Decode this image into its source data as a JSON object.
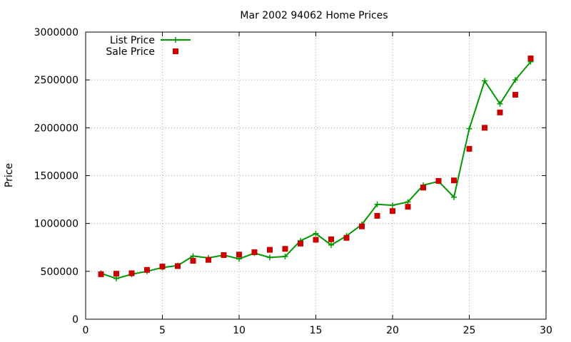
{
  "chart_data": {
    "type": "line",
    "title": "Mar 2002 94062 Home Prices",
    "xlabel": "",
    "ylabel": "Price",
    "xlim": [
      0,
      30
    ],
    "ylim": [
      0,
      3000000
    ],
    "xticks": [
      0,
      5,
      10,
      15,
      20,
      25,
      30
    ],
    "yticks": [
      0,
      500000,
      1000000,
      1500000,
      2000000,
      2500000,
      3000000
    ],
    "xtick_labels": [
      "0",
      "5",
      "10",
      "15",
      "20",
      "25",
      "30"
    ],
    "ytick_labels": [
      "0",
      "500000",
      "1000000",
      "1500000",
      "2000000",
      "2500000",
      "3000000"
    ],
    "grid": true,
    "legend_position": "top-left",
    "x": [
      1,
      2,
      3,
      4,
      5,
      6,
      7,
      8,
      9,
      10,
      11,
      12,
      13,
      14,
      15,
      16,
      17,
      18,
      19,
      20,
      21,
      22,
      23,
      24,
      25,
      26,
      27,
      28,
      29
    ],
    "series": [
      {
        "name": "List Price",
        "style": "line-plus",
        "color": "#009900",
        "values": [
          480000,
          425000,
          470000,
          500000,
          540000,
          560000,
          660000,
          640000,
          670000,
          630000,
          690000,
          645000,
          655000,
          820000,
          895000,
          775000,
          870000,
          990000,
          1200000,
          1190000,
          1225000,
          1400000,
          1440000,
          1275000,
          1990000,
          2490000,
          2250000,
          2500000,
          2690000
        ]
      },
      {
        "name": "Sale Price",
        "style": "square",
        "color": "#cc0000",
        "values": [
          470000,
          475000,
          480000,
          515000,
          550000,
          555000,
          610000,
          620000,
          670000,
          675000,
          700000,
          725000,
          735000,
          790000,
          830000,
          835000,
          850000,
          970000,
          1080000,
          1130000,
          1175000,
          1375000,
          1445000,
          1450000,
          1780000,
          2000000,
          2160000,
          2345000,
          2725000
        ]
      }
    ]
  }
}
